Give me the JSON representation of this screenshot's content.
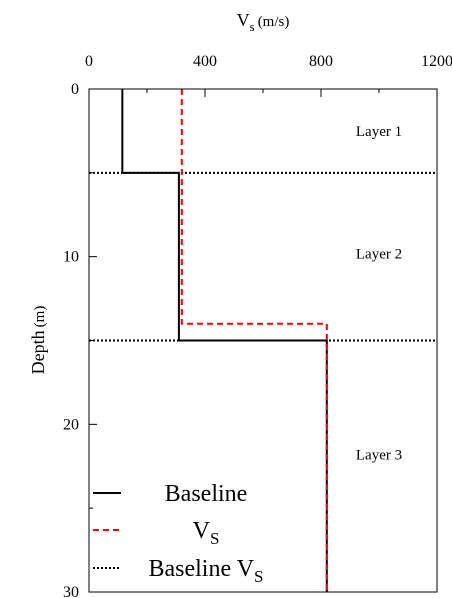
{
  "chart_data": {
    "type": "line",
    "x_axis": {
      "label_main": "V",
      "label_sub": "s",
      "label_unit": "(m/s)",
      "position": "top",
      "range": [
        0,
        1200
      ],
      "ticks": [
        0,
        400,
        800,
        1200
      ],
      "tick_labels": [
        "0",
        "400",
        "800",
        "1200"
      ]
    },
    "y_axis": {
      "label_main": "Depth",
      "label_unit": "(m)",
      "range": [
        0,
        30
      ],
      "inverted": true,
      "ticks": [
        0,
        10,
        20,
        30
      ],
      "tick_labels": [
        "0",
        "10",
        "20",
        "30"
      ]
    },
    "layer_boundaries": [
      5,
      15
    ],
    "layer_labels": [
      {
        "text": "Layer 1",
        "x": 1000,
        "y": 2.5
      },
      {
        "text": "Layer 2",
        "x": 1000,
        "y": 9.8
      },
      {
        "text": "Layer 3",
        "x": 1000,
        "y": 21.8
      }
    ],
    "series": [
      {
        "name": "Baseline",
        "style": "solid",
        "color": "#000000",
        "points": [
          [
            115,
            0
          ],
          [
            115,
            5
          ],
          [
            310,
            5
          ],
          [
            310,
            15
          ],
          [
            820,
            15
          ],
          [
            820,
            30
          ]
        ]
      },
      {
        "name_main": "V",
        "name_sub": "S",
        "style": "dashed",
        "color": "#ff0000",
        "points": [
          [
            320,
            0
          ],
          [
            320,
            5
          ],
          [
            320,
            14
          ],
          [
            820,
            14
          ],
          [
            820,
            30
          ]
        ]
      }
    ],
    "legend": {
      "placement": "bottom-left",
      "entries": [
        {
          "main": "Baseline",
          "sub": "",
          "style": "solid",
          "color": "#000000"
        },
        {
          "main": "V",
          "sub": "S",
          "style": "dashed",
          "color": "#ff0000"
        },
        {
          "main": "Baseline V",
          "sub": "S",
          "style": "dotted",
          "color": "#000000"
        }
      ]
    }
  }
}
